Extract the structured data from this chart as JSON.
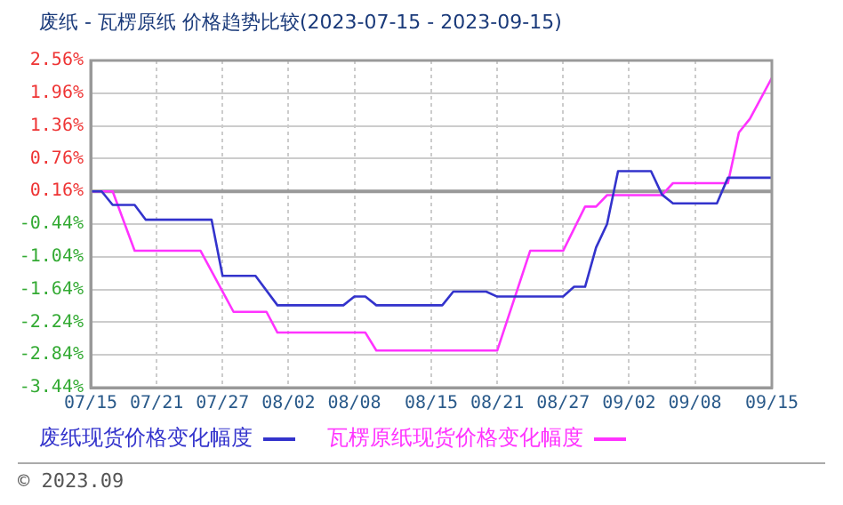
{
  "chart_data": {
    "type": "line",
    "title": "废纸 - 瓦楞原纸 价格趋势比较(2023-07-15 - 2023-09-15)",
    "xlim": [
      "--07-15",
      "--09-15"
    ],
    "xticks": [
      {
        "value": "--07-15",
        "label": "07/15"
      },
      {
        "value": "--07-21",
        "label": "07/21"
      },
      {
        "value": "--07-27",
        "label": "07/27"
      },
      {
        "value": "--08-02",
        "label": "08/02"
      },
      {
        "value": "--08-08",
        "label": "08/08"
      },
      {
        "value": "--08-15",
        "label": "08/15"
      },
      {
        "value": "--08-21",
        "label": "08/21"
      },
      {
        "value": "--08-27",
        "label": "08/27"
      },
      {
        "value": "--09-02",
        "label": "09/02"
      },
      {
        "value": "--09-08",
        "label": "09/08"
      },
      {
        "value": "--09-15",
        "label": "09/15"
      }
    ],
    "ylim": [
      -3.44,
      2.56
    ],
    "yticks": [
      {
        "value": 2.56,
        "label": "2.56%"
      },
      {
        "value": 1.96,
        "label": "1.96%"
      },
      {
        "value": 1.36,
        "label": "1.36%"
      },
      {
        "value": 0.76,
        "label": "0.76%"
      },
      {
        "value": 0.16,
        "label": "0.16%"
      },
      {
        "value": -0.44,
        "label": "-0.44%"
      },
      {
        "value": -1.04,
        "label": "-1.04%"
      },
      {
        "value": -1.64,
        "label": "-1.64%"
      },
      {
        "value": -2.24,
        "label": "-2.24%"
      },
      {
        "value": -2.84,
        "label": "-2.84%"
      },
      {
        "value": -3.44,
        "label": "-3.44%"
      }
    ],
    "grid": true,
    "legend": "bottom",
    "marker": "none",
    "line_style": "solid",
    "ref_lines": [
      {
        "axis": "y",
        "value": 0.16,
        "color": "#999999"
      }
    ],
    "annotations": [
      "© 2023.09"
    ],
    "series": [
      {
        "name": "废纸现货价格变化幅度",
        "color": "#3333cc",
        "x": [
          "--07-15",
          "--07-16",
          "--07-17",
          "--07-19",
          "--07-20",
          "--07-26",
          "--07-27",
          "--07-30",
          "--08-01",
          "--08-07",
          "--08-08",
          "--08-09",
          "--08-10",
          "--08-16",
          "--08-17",
          "--08-20",
          "--08-21",
          "--08-27",
          "--08-28",
          "--08-29",
          "--08-30",
          "--08-31",
          "--09-01",
          "--09-04",
          "--09-05",
          "--09-06",
          "--09-10",
          "--09-11",
          "--09-15"
        ],
        "values": [
          0.16,
          0.16,
          -0.09,
          -0.09,
          -0.36,
          -0.36,
          -1.39,
          -1.39,
          -1.93,
          -1.93,
          -1.77,
          -1.77,
          -1.93,
          -1.93,
          -1.68,
          -1.68,
          -1.77,
          -1.77,
          -1.59,
          -1.59,
          -0.87,
          -0.44,
          0.53,
          0.53,
          0.1,
          -0.06,
          -0.06,
          0.41,
          0.41
        ]
      },
      {
        "name": "瓦楞原纸现货价格变化幅度",
        "color": "#ff33ff",
        "x": [
          "--07-15",
          "--07-17",
          "--07-19",
          "--07-25",
          "--07-28",
          "--07-31",
          "--08-01",
          "--08-09",
          "--08-10",
          "--08-21",
          "--08-24",
          "--08-27",
          "--08-29",
          "--08-30",
          "--08-31",
          "--09-05",
          "--09-06",
          "--09-11",
          "--09-12",
          "--09-13",
          "--09-15"
        ],
        "values": [
          0.16,
          0.16,
          -0.93,
          -0.93,
          -2.05,
          -2.05,
          -2.43,
          -2.43,
          -2.76,
          -2.76,
          -0.93,
          -0.93,
          -0.12,
          -0.12,
          0.09,
          0.09,
          0.31,
          0.31,
          1.24,
          1.49,
          2.24
        ]
      }
    ]
  }
}
